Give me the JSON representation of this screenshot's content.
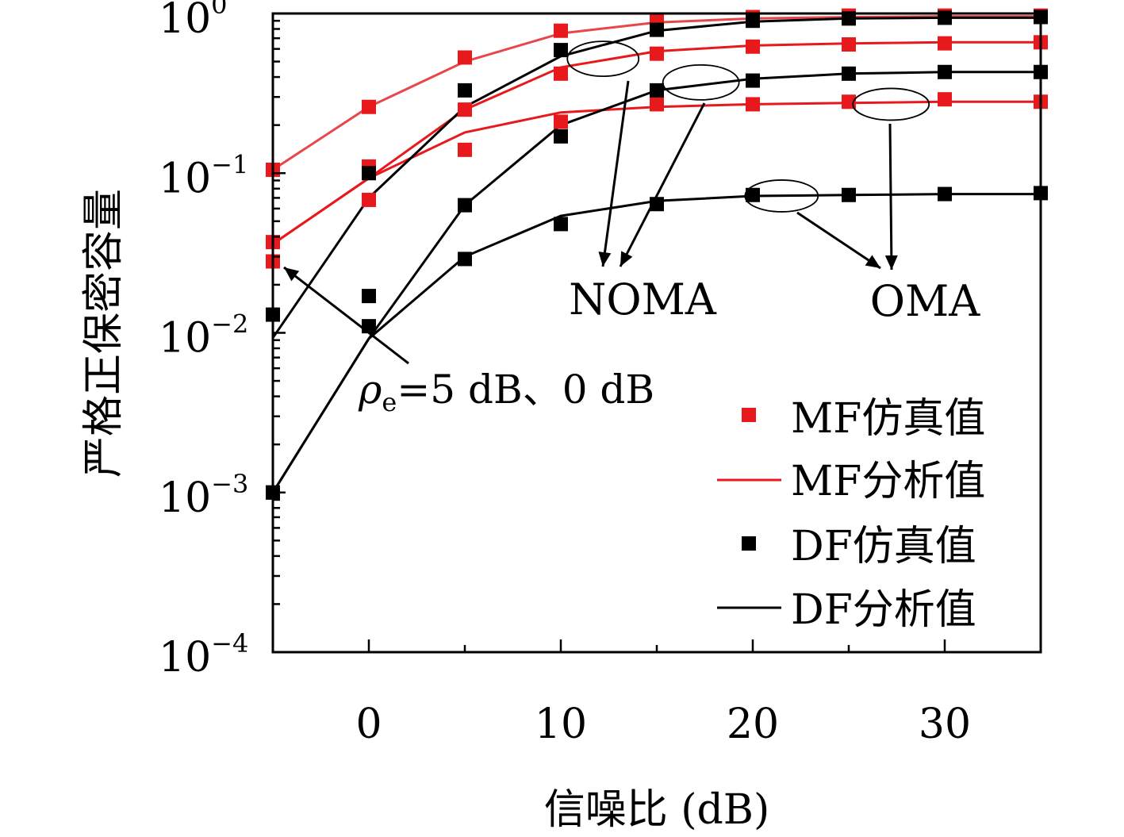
{
  "chart_data": {
    "type": "line",
    "title": "",
    "xlabel": "信噪比 (dB)",
    "ylabel": "严格正保密容量",
    "xlim": [
      -5,
      35
    ],
    "ylim": [
      0.0001,
      1
    ],
    "y_scale": "log",
    "x_ticks": [
      0,
      10,
      20,
      30
    ],
    "x_tick_labels": [
      "0",
      "10",
      "20",
      "30"
    ],
    "y_ticks": [
      {
        "value": 1,
        "base": "10",
        "exp": "0"
      },
      {
        "value": 0.1,
        "base": "10",
        "exp": "−1"
      },
      {
        "value": 0.01,
        "base": "10",
        "exp": "−2"
      },
      {
        "value": 0.001,
        "base": "10",
        "exp": "−3"
      },
      {
        "value": 0.0001,
        "base": "10",
        "exp": "−4"
      }
    ],
    "grid": false,
    "legend": {
      "placement": "right",
      "entries": [
        {
          "label": "MF仿真值",
          "marker": "square",
          "color": "#e8191c"
        },
        {
          "label": "MF分析值",
          "marker": "line",
          "color": "#e8191c"
        },
        {
          "label": "DF仿真值",
          "marker": "square",
          "color": "#000000"
        },
        {
          "label": "DF分析值",
          "marker": "line",
          "color": "#000000"
        }
      ]
    },
    "annotations": {
      "noma": "NOMA",
      "oma": "OMA",
      "rho_symbol": "ρ",
      "rho_sub": "e",
      "rho_text": "=5 dB、0 dB"
    },
    "series": [
      {
        "kind": "MF",
        "color": "#e8191c",
        "line_color": "#e8464a",
        "x": [
          -5,
          0,
          5,
          10,
          15,
          20,
          25,
          30,
          35
        ],
        "analysis": [
          0.105,
          0.26,
          0.5,
          0.75,
          0.88,
          0.93,
          0.95,
          0.96,
          0.96
        ],
        "sim": [
          0.105,
          0.26,
          0.53,
          0.78,
          0.91,
          0.95,
          0.97,
          0.97,
          0.97
        ]
      },
      {
        "kind": "MF",
        "color": "#e8191c",
        "line_color": "#e8191c",
        "x": [
          -5,
          0,
          5,
          10,
          15,
          20,
          25,
          30,
          35
        ],
        "analysis": [
          0.036,
          0.093,
          0.25,
          0.46,
          0.58,
          0.63,
          0.65,
          0.66,
          0.66
        ],
        "sim": [
          0.037,
          0.11,
          0.25,
          0.42,
          0.56,
          0.62,
          0.64,
          0.65,
          0.66
        ]
      },
      {
        "kind": "MF",
        "color": "#e8191c",
        "line_color": "#e8191c",
        "x": [
          -5,
          0,
          5,
          10,
          15,
          20,
          25,
          30,
          35
        ],
        "analysis": [
          0.036,
          0.093,
          0.18,
          0.24,
          0.26,
          0.27,
          0.275,
          0.28,
          0.28
        ],
        "sim": [
          0.028,
          0.068,
          0.14,
          0.21,
          0.27,
          0.27,
          0.28,
          0.29,
          0.28
        ]
      },
      {
        "kind": "DF",
        "color": "#000000",
        "line_color": "#000000",
        "x": [
          -5,
          0,
          5,
          10,
          15,
          20,
          25,
          30,
          35
        ],
        "analysis": [
          0.0093,
          0.07,
          0.26,
          0.54,
          0.78,
          0.89,
          0.93,
          0.94,
          0.94
        ],
        "sim": [
          0.013,
          0.1,
          0.33,
          0.59,
          0.79,
          0.9,
          0.93,
          0.94,
          0.95
        ]
      },
      {
        "kind": "DF",
        "color": "#000000",
        "line_color": "#000000",
        "x": [
          -5,
          0,
          5,
          10,
          15,
          20,
          25,
          30,
          35
        ],
        "analysis": [
          0.001,
          0.0092,
          0.063,
          0.2,
          0.33,
          0.39,
          0.42,
          0.43,
          0.43
        ],
        "sim": [
          0.001,
          0.017,
          0.063,
          0.17,
          0.33,
          0.38,
          0.42,
          0.43,
          0.43
        ]
      },
      {
        "kind": "DF",
        "color": "#000000",
        "line_color": "#000000",
        "x": [
          -5,
          0,
          5,
          10,
          15,
          20,
          25,
          30,
          35
        ],
        "analysis": [
          0.001,
          0.0092,
          0.03,
          0.054,
          0.067,
          0.072,
          0.073,
          0.074,
          0.074
        ],
        "sim": [
          0.001,
          0.011,
          0.029,
          0.048,
          0.064,
          0.073,
          0.073,
          0.074,
          0.075
        ]
      }
    ]
  }
}
